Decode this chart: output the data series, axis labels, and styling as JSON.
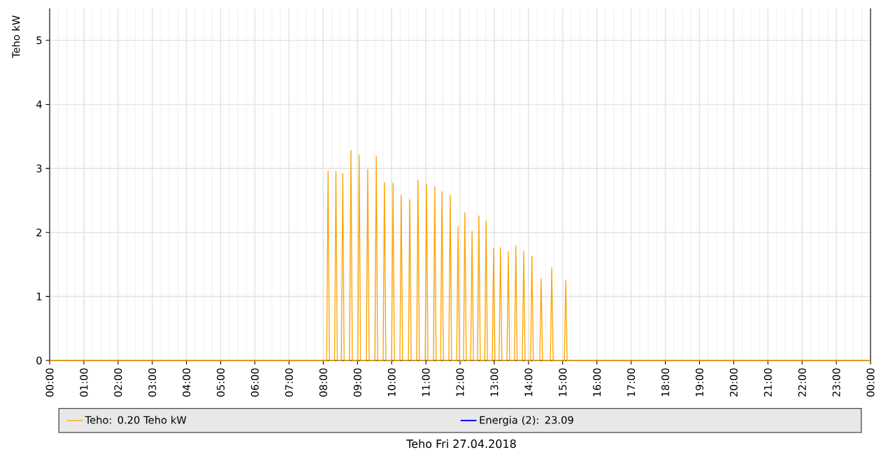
{
  "chart_data": {
    "type": "line",
    "annotations": [
      "Teho Fri 27.04.2018"
    ],
    "ylabel": "Teho kW",
    "xlim": [
      0,
      24
    ],
    "ylim": [
      0,
      5.5
    ],
    "xticks": [
      {
        "value": 0,
        "label": "00:00"
      },
      {
        "value": 1,
        "label": "01:00"
      },
      {
        "value": 2,
        "label": "02:00"
      },
      {
        "value": 3,
        "label": "03:00"
      },
      {
        "value": 4,
        "label": "04:00"
      },
      {
        "value": 5,
        "label": "05:00"
      },
      {
        "value": 6,
        "label": "06:00"
      },
      {
        "value": 7,
        "label": "07:00"
      },
      {
        "value": 8,
        "label": "08:00"
      },
      {
        "value": 9,
        "label": "09:00"
      },
      {
        "value": 10,
        "label": "10:00"
      },
      {
        "value": 11,
        "label": "11:00"
      },
      {
        "value": 12,
        "label": "12:00"
      },
      {
        "value": 13,
        "label": "13:00"
      },
      {
        "value": 14,
        "label": "14:00"
      },
      {
        "value": 15,
        "label": "15:00"
      },
      {
        "value": 16,
        "label": "16:00"
      },
      {
        "value": 17,
        "label": "17:00"
      },
      {
        "value": 18,
        "label": "18:00"
      },
      {
        "value": 19,
        "label": "19:00"
      },
      {
        "value": 20,
        "label": "20:00"
      },
      {
        "value": 21,
        "label": "21:00"
      },
      {
        "value": 22,
        "label": "22:00"
      },
      {
        "value": 23,
        "label": "23:00"
      },
      {
        "value": 24,
        "label": "00:00"
      }
    ],
    "yticks": [
      0,
      1,
      2,
      3,
      4,
      5
    ],
    "grid": true,
    "legend": "bottom",
    "marker": "none",
    "line_style": "solid",
    "series": [
      {
        "name": "Teho: 0.20 Teho kW",
        "color": "#ffa500",
        "x": [
          0,
          8.1,
          8.14,
          8.18,
          8.33,
          8.37,
          8.41,
          8.53,
          8.57,
          8.61,
          8.77,
          8.81,
          8.85,
          9.01,
          9.05,
          9.09,
          9.26,
          9.3,
          9.34,
          9.51,
          9.55,
          9.59,
          9.75,
          9.79,
          9.83,
          10.0,
          10.04,
          10.08,
          10.24,
          10.28,
          10.32,
          10.49,
          10.53,
          10.57,
          10.73,
          10.77,
          10.81,
          10.98,
          11.02,
          11.06,
          11.22,
          11.26,
          11.3,
          11.43,
          11.47,
          11.51,
          11.67,
          11.71,
          11.75,
          11.9,
          11.94,
          11.98,
          12.1,
          12.14,
          12.18,
          12.31,
          12.35,
          12.39,
          12.51,
          12.55,
          12.59,
          12.72,
          12.76,
          12.8,
          12.94,
          12.98,
          13.02,
          13.14,
          13.18,
          13.22,
          13.37,
          13.41,
          13.45,
          13.59,
          13.63,
          13.67,
          13.82,
          13.86,
          13.9,
          14.06,
          14.1,
          14.14,
          14.33,
          14.37,
          14.41,
          14.64,
          14.68,
          14.72,
          15.05,
          15.09,
          15.13,
          24
        ],
        "values": [
          0,
          0,
          2.96,
          0,
          0,
          2.95,
          0,
          0,
          2.92,
          0,
          0,
          3.28,
          0,
          0,
          3.21,
          0,
          0,
          2.98,
          0,
          0,
          3.19,
          0,
          0,
          2.78,
          0,
          0,
          2.77,
          0,
          0,
          2.58,
          0,
          0,
          2.51,
          0,
          0,
          2.82,
          0,
          0,
          2.75,
          0,
          0,
          2.71,
          0,
          0,
          2.64,
          0,
          0,
          2.58,
          0,
          0,
          2.09,
          0,
          0,
          2.31,
          0,
          0,
          2.02,
          0,
          0,
          2.26,
          0,
          0,
          2.18,
          0,
          0,
          1.75,
          0,
          0,
          1.76,
          0,
          0,
          1.7,
          0,
          0,
          1.79,
          0,
          0,
          1.71,
          0,
          0,
          1.63,
          0,
          0,
          1.28,
          0,
          0,
          1.45,
          0,
          0,
          1.25,
          0,
          0
        ]
      },
      {
        "name": "Energia (2): 23.09",
        "color": "#0000ff"
      }
    ]
  }
}
